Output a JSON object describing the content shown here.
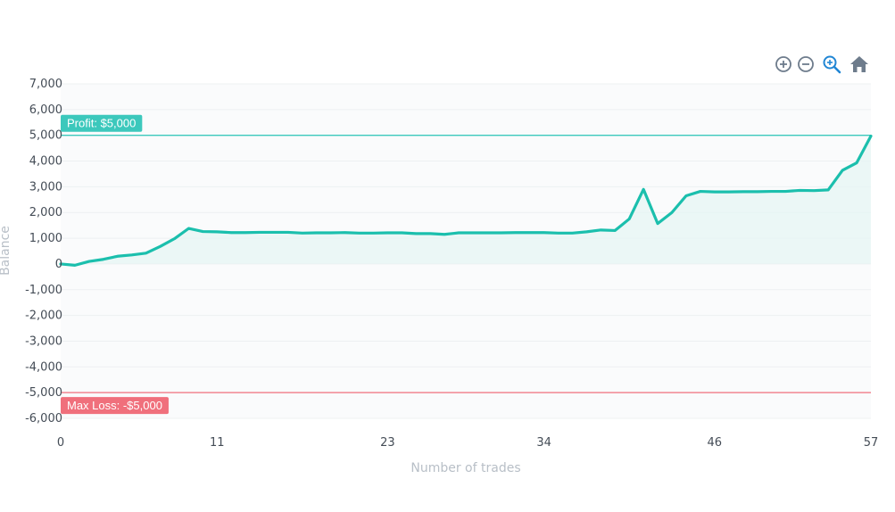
{
  "toolbar": {
    "buttons": [
      {
        "name": "zoom-in-icon",
        "color": "#6e7c8c"
      },
      {
        "name": "zoom-out-icon",
        "color": "#6e7c8c"
      },
      {
        "name": "magnifier-zoom-icon",
        "color": "#2186d4"
      },
      {
        "name": "home-reset-icon",
        "color": "#6e7c8c"
      }
    ]
  },
  "chart_data": {
    "type": "area",
    "title": "",
    "xlabel": "Number of trades",
    "ylabel": "Balance",
    "xlim": [
      0,
      57
    ],
    "ylim": [
      -6000,
      7000
    ],
    "x_ticks": [
      "0",
      "11",
      "23",
      "34",
      "46",
      "57"
    ],
    "y_ticks": [
      "7,000",
      "6,000",
      "5,000",
      "4,000",
      "3,000",
      "2,000",
      "1,000",
      "0",
      "-1,000",
      "-2,000",
      "-3,000",
      "-4,000",
      "-5,000",
      "-6,000"
    ],
    "grid": true,
    "line_color": "#1bbfad",
    "fill_color": "#e6f6f4",
    "x": [
      0,
      1,
      2,
      3,
      4,
      5,
      6,
      7,
      8,
      9,
      10,
      11,
      12,
      13,
      14,
      15,
      16,
      17,
      18,
      19,
      20,
      21,
      22,
      23,
      24,
      25,
      26,
      27,
      28,
      29,
      30,
      31,
      32,
      33,
      34,
      35,
      36,
      37,
      38,
      39,
      40,
      41,
      42,
      43,
      44,
      45,
      46,
      47,
      48,
      49,
      50,
      51,
      52,
      53,
      54,
      55,
      56,
      57
    ],
    "y": [
      0,
      -50,
      100,
      180,
      300,
      350,
      420,
      680,
      980,
      1380,
      1260,
      1250,
      1220,
      1220,
      1230,
      1230,
      1230,
      1200,
      1210,
      1210,
      1220,
      1200,
      1200,
      1210,
      1210,
      1180,
      1180,
      1150,
      1210,
      1210,
      1210,
      1210,
      1220,
      1220,
      1220,
      1200,
      1200,
      1250,
      1320,
      1300,
      1750,
      2900,
      1570,
      2000,
      2650,
      2820,
      2800,
      2800,
      2810,
      2810,
      2820,
      2820,
      2860,
      2850,
      2880,
      3640,
      3930,
      4970
    ],
    "annotations": [
      {
        "label": "Profit: $5,000",
        "y": 5000,
        "color": "#3cc8bc"
      },
      {
        "label": "Max Loss: -$5,000",
        "y": -5000,
        "color": "#f0707c"
      }
    ]
  }
}
